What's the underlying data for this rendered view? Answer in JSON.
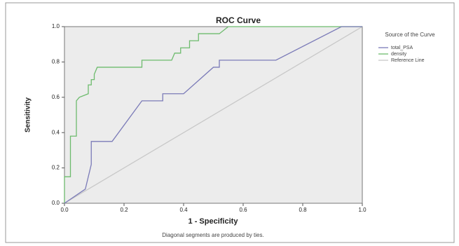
{
  "chart_data": {
    "type": "line",
    "title": "ROC Curve",
    "xlabel": "1 - Specificity",
    "ylabel": "Sensitivity",
    "footnote": "Diagonal segments are produced by ties.",
    "legend_title": "Source of the Curve",
    "legend": "right",
    "xlim": [
      0,
      1
    ],
    "ylim": [
      0,
      1
    ],
    "xticks": [
      {
        "value": 0,
        "label": "0.0"
      },
      0.2,
      0.4,
      0.6,
      0.8,
      {
        "value": 1,
        "label": "1.0"
      }
    ],
    "yticks": [
      {
        "value": 0,
        "label": "0.0"
      },
      0.2,
      0.4,
      0.6,
      0.8,
      {
        "value": 1,
        "label": "1.0"
      }
    ],
    "series": [
      {
        "name": "total_PSA",
        "color": "#7b7bb8",
        "x": [
          0,
          0.07,
          0.09,
          0.09,
          0.16,
          0.26,
          0.33,
          0.33,
          0.4,
          0.5,
          0.52,
          0.52,
          0.71,
          0.93,
          1
        ],
        "values": [
          0,
          0.08,
          0.22,
          0.35,
          0.35,
          0.58,
          0.58,
          0.62,
          0.62,
          0.77,
          0.77,
          0.81,
          0.81,
          1,
          1
        ]
      },
      {
        "name": "density",
        "color": "#6dbb6d",
        "x": [
          0,
          0,
          0.02,
          0.02,
          0.04,
          0.04,
          0.05,
          0.08,
          0.08,
          0.09,
          0.09,
          0.1,
          0.1,
          0.11,
          0.26,
          0.26,
          0.36,
          0.37,
          0.39,
          0.39,
          0.42,
          0.42,
          0.45,
          0.45,
          0.52,
          0.55,
          1
        ],
        "values": [
          0,
          0.15,
          0.15,
          0.38,
          0.38,
          0.58,
          0.6,
          0.62,
          0.67,
          0.67,
          0.7,
          0.7,
          0.73,
          0.77,
          0.77,
          0.81,
          0.81,
          0.85,
          0.85,
          0.88,
          0.88,
          0.92,
          0.92,
          0.96,
          0.96,
          1,
          1
        ]
      },
      {
        "name": "Reference Line",
        "color": "#c8c8c8",
        "x": [
          0,
          1
        ],
        "values": [
          0,
          1
        ]
      }
    ]
  }
}
